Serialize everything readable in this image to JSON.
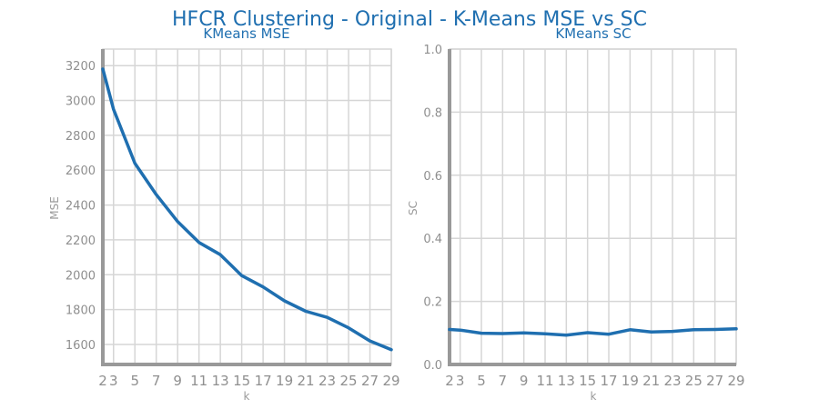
{
  "figure": {
    "title": "HFCR Clustering - Original - K-Means MSE vs SC"
  },
  "chart_data": [
    {
      "type": "line",
      "title": "KMeans MSE",
      "xlabel": "k",
      "ylabel": "MSE",
      "x": [
        2,
        3,
        5,
        7,
        9,
        11,
        13,
        15,
        17,
        19,
        21,
        23,
        25,
        27,
        29
      ],
      "series": [
        {
          "values": [
            3180,
            2950,
            2640,
            2460,
            2305,
            2185,
            2115,
            1995,
            1930,
            1850,
            1790,
            1755,
            1695,
            1620,
            1570
          ]
        }
      ],
      "xticks": [
        2,
        3,
        5,
        7,
        9,
        11,
        13,
        15,
        17,
        19,
        21,
        23,
        25,
        27,
        29
      ],
      "yticks": [
        1600,
        1800,
        2000,
        2200,
        2400,
        2600,
        2800,
        3000,
        3200
      ],
      "xlim": [
        2,
        29
      ],
      "ylim": [
        1485,
        3295
      ],
      "grid": true,
      "color": "#1f6fb0"
    },
    {
      "type": "line",
      "title": "KMeans SC",
      "xlabel": "k",
      "ylabel": "SC",
      "x": [
        2,
        3,
        5,
        7,
        9,
        11,
        13,
        15,
        17,
        19,
        21,
        23,
        25,
        27,
        29
      ],
      "series": [
        {
          "values": [
            0.111,
            0.109,
            0.099,
            0.098,
            0.1,
            0.097,
            0.093,
            0.101,
            0.096,
            0.11,
            0.103,
            0.105,
            0.11,
            0.111,
            0.113
          ]
        }
      ],
      "xticks": [
        2,
        3,
        5,
        7,
        9,
        11,
        13,
        15,
        17,
        19,
        21,
        23,
        25,
        27,
        29
      ],
      "yticks": [
        0.0,
        0.2,
        0.4,
        0.6,
        0.8,
        1.0
      ],
      "yticklabels": [
        "0.0",
        "0.2",
        "0.4",
        "0.6",
        "0.8",
        "1.0"
      ],
      "xlim": [
        2,
        29
      ],
      "ylim": [
        0,
        1
      ],
      "grid": true,
      "color": "#1f6fb0"
    }
  ]
}
